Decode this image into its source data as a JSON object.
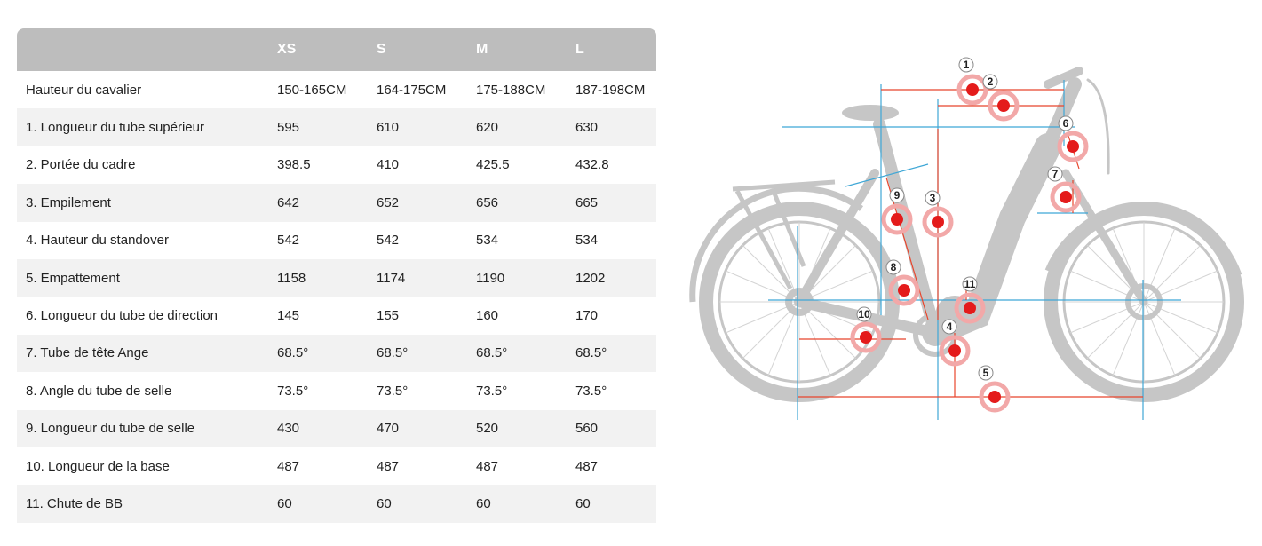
{
  "table": {
    "headers": [
      "",
      "XS",
      "S",
      "M",
      "L"
    ],
    "rows": [
      {
        "label": "Hauteur du cavalier",
        "xs": "150-165CM",
        "s": "164-175CM",
        "m": "175-188CM",
        "l": "187-198CM"
      },
      {
        "label": "1. Longueur du tube supérieur",
        "xs": "595",
        "s": "610",
        "m": "620",
        "l": "630"
      },
      {
        "label": "2. Portée du cadre",
        "xs": "398.5",
        "s": "410",
        "m": "425.5",
        "l": "432.8"
      },
      {
        "label": "3. Empilement",
        "xs": "642",
        "s": "652",
        "m": "656",
        "l": "665"
      },
      {
        "label": "4. Hauteur du standover",
        "xs": "542",
        "s": "542",
        "m": "534",
        "l": "534"
      },
      {
        "label": "5. Empattement",
        "xs": "1158",
        "s": "1174",
        "m": "1190",
        "l": "1202"
      },
      {
        "label": "6. Longueur du tube de direction",
        "xs": "145",
        "s": "155",
        "m": "160",
        "l": "170"
      },
      {
        "label": "7. Tube de tête Ange",
        "xs": "68.5°",
        "s": "68.5°",
        "m": "68.5°",
        "l": "68.5°"
      },
      {
        "label": "8. Angle du tube de selle",
        "xs": "73.5°",
        "s": "73.5°",
        "m": "73.5°",
        "l": "73.5°"
      },
      {
        "label": "9. Longueur du tube de selle",
        "xs": "430",
        "s": "470",
        "m": "520",
        "l": "560"
      },
      {
        "label": "10. Longueur de la base",
        "xs": "487",
        "s": "487",
        "m": "487",
        "l": "487"
      },
      {
        "label": "11. Chute de BB",
        "xs": "60",
        "s": "60",
        "m": "60",
        "l": "60"
      }
    ]
  },
  "diagram": {
    "markers": [
      "1",
      "2",
      "3",
      "4",
      "5",
      "6",
      "7",
      "8",
      "9",
      "10",
      "11"
    ]
  },
  "colors": {
    "header_bg": "#bdbdbd",
    "row_shade": "#f2f2f2",
    "bike_gray": "#c6c6c6",
    "measure_red": "#e8452c",
    "guide_blue": "#3fa7d6",
    "marker_red": "#e41b1b"
  }
}
